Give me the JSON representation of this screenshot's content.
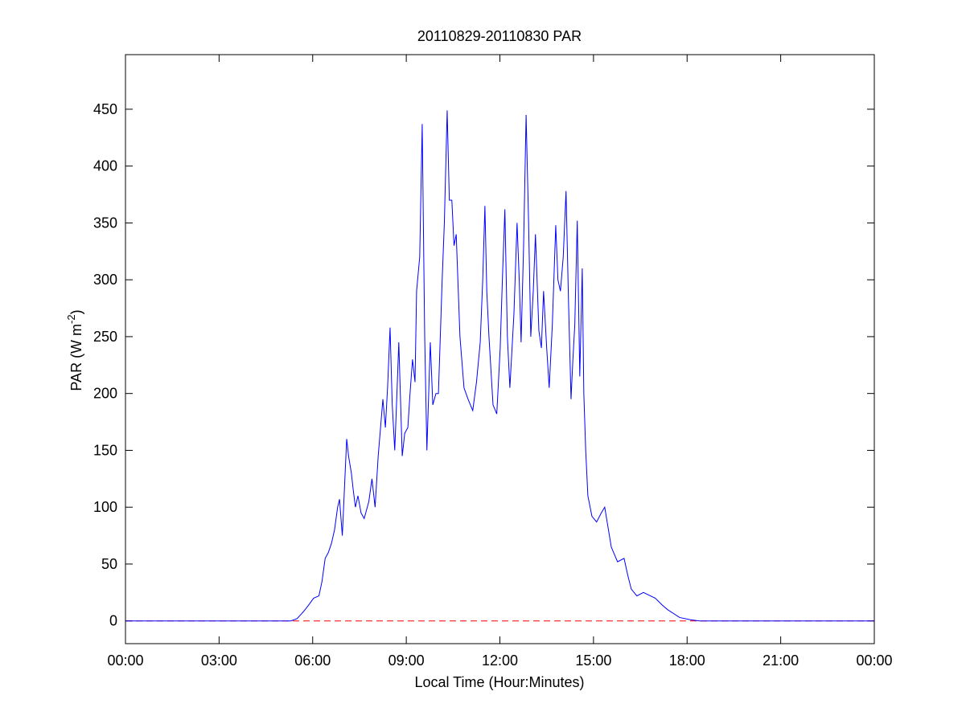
{
  "chart_data": {
    "type": "line",
    "title": "20110829-20110830 PAR",
    "xlabel": "Local Time (Hour:Minutes)",
    "ylabel_parts": [
      "PAR (W m",
      "-2",
      ")"
    ],
    "x": [
      0,
      5.3,
      5.5,
      5.7,
      5.9,
      6.03,
      6.2,
      6.3,
      6.4,
      6.5,
      6.6,
      6.7,
      6.8,
      6.86,
      6.95,
      7.09,
      7.15,
      7.24,
      7.3,
      7.37,
      7.45,
      7.55,
      7.65,
      7.8,
      7.9,
      8.0,
      8.1,
      8.25,
      8.33,
      8.4,
      8.48,
      8.55,
      8.63,
      8.7,
      8.76,
      8.87,
      8.95,
      9.05,
      9.12,
      9.2,
      9.28,
      9.33,
      9.43,
      9.51,
      9.59,
      9.66,
      9.77,
      9.85,
      9.95,
      10.03,
      10.15,
      10.22,
      10.31,
      10.38,
      10.46,
      10.53,
      10.6,
      10.72,
      10.85,
      10.98,
      11.13,
      11.25,
      11.37,
      11.45,
      11.52,
      11.58,
      11.65,
      11.78,
      11.9,
      12.01,
      12.08,
      12.16,
      12.24,
      12.32,
      12.45,
      12.55,
      12.62,
      12.68,
      12.76,
      12.84,
      12.92,
      12.99,
      13.07,
      13.14,
      13.25,
      13.33,
      13.4,
      13.5,
      13.58,
      13.68,
      13.79,
      13.86,
      13.94,
      14.03,
      14.12,
      14.2,
      14.28,
      14.34,
      14.4,
      14.48,
      14.56,
      14.64,
      14.69,
      14.75,
      14.82,
      14.95,
      15.1,
      15.25,
      15.36,
      15.45,
      15.57,
      15.77,
      15.98,
      16.1,
      16.21,
      16.3,
      16.39,
      16.6,
      16.98,
      17.2,
      17.37,
      17.76,
      18.1,
      18.4,
      24
    ],
    "series": [
      {
        "color": "#0000ff",
        "values": [
          0,
          0,
          2,
          8,
          15,
          20,
          22,
          35,
          55,
          60,
          68,
          80,
          100,
          107,
          75,
          160,
          145,
          130,
          115,
          100,
          110,
          95,
          90,
          105,
          125,
          100,
          145,
          195,
          170,
          205,
          258,
          190,
          150,
          200,
          245,
          145,
          165,
          170,
          200,
          230,
          210,
          290,
          320,
          437,
          250,
          150,
          245,
          190,
          200,
          200,
          300,
          350,
          449,
          370,
          370,
          330,
          340,
          250,
          205,
          195,
          185,
          210,
          245,
          300,
          365,
          290,
          250,
          190,
          182,
          240,
          300,
          362,
          250,
          205,
          270,
          350,
          300,
          245,
          330,
          445,
          350,
          250,
          290,
          340,
          255,
          240,
          290,
          240,
          205,
          260,
          348,
          300,
          290,
          320,
          378,
          280,
          195,
          230,
          260,
          352,
          215,
          310,
          200,
          150,
          110,
          92,
          87,
          95,
          100,
          85,
          65,
          52,
          55,
          40,
          28,
          25,
          22,
          25,
          20,
          14,
          10,
          3,
          1,
          0,
          0
        ]
      }
    ],
    "reference_line": {
      "value": 0,
      "color": "#ff0000",
      "dashed": true
    },
    "xlim": [
      0,
      24
    ],
    "xticks": [
      {
        "value": 0,
        "label": "00:00"
      },
      {
        "value": 3,
        "label": "03:00"
      },
      {
        "value": 6,
        "label": "06:00"
      },
      {
        "value": 9,
        "label": "09:00"
      },
      {
        "value": 12,
        "label": "12:00"
      },
      {
        "value": 15,
        "label": "15:00"
      },
      {
        "value": 18,
        "label": "18:00"
      },
      {
        "value": 21,
        "label": "21:00"
      },
      {
        "value": 24,
        "label": "00:00"
      }
    ],
    "ylim": [
      -20,
      498
    ],
    "yticks": [
      0,
      50,
      100,
      150,
      200,
      250,
      300,
      350,
      400,
      450
    ],
    "grid": false
  }
}
